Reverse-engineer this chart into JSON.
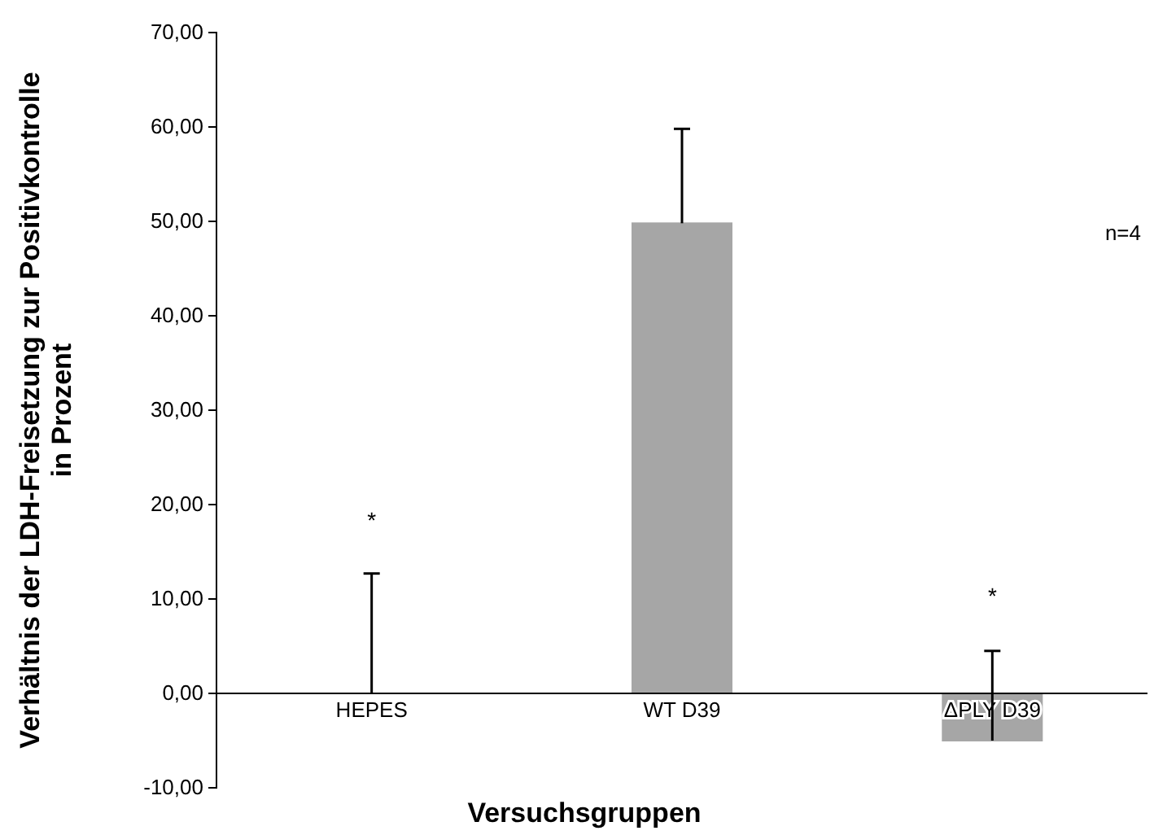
{
  "chart_data": {
    "type": "bar",
    "xlabel": "Versuchsgruppen",
    "ylabel": "Verhältnis der LDH-Freisetzung zur Positivkontrolle in Prozent",
    "categories": [
      "HEPES",
      "WT D39",
      "ΔPLY D39"
    ],
    "values": [
      0.0,
      49.8,
      -5.0
    ],
    "color": "#a6a6a6",
    "errors": [
      [
        0.0,
        12.7
      ],
      [
        49.8,
        59.8
      ],
      [
        -5.0,
        4.5
      ]
    ],
    "ylim": [
      -10,
      70
    ],
    "yticks": [
      {
        "value": -10,
        "label": "-10,00"
      },
      {
        "value": 0,
        "label": "0,00"
      },
      {
        "value": 10,
        "label": "10,00"
      },
      {
        "value": 20,
        "label": "20,00"
      },
      {
        "value": 30,
        "label": "30,00"
      },
      {
        "value": 40,
        "label": "40,00"
      },
      {
        "value": 50,
        "label": "50,00"
      },
      {
        "value": 60,
        "label": "60,00"
      },
      {
        "value": 70,
        "label": "70,00"
      }
    ],
    "grid": false,
    "annotations": [
      "*",
      "*",
      "n=4"
    ]
  }
}
